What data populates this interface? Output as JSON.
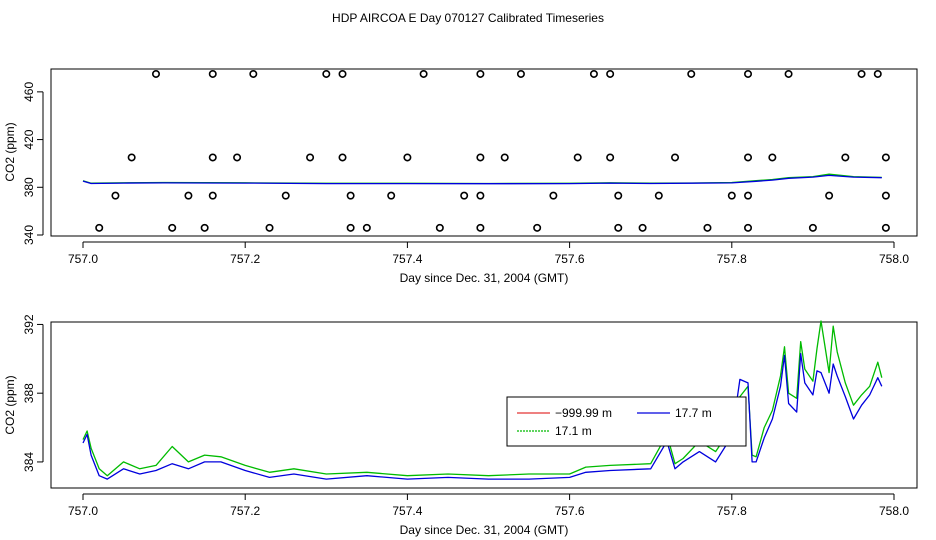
{
  "title": "HDP AIRCOA E  Day 070127  Calibrated Timeseries",
  "colors": {
    "red": "#dd0000",
    "green": "#00bb00",
    "blue": "#0000dd"
  },
  "chart_data": [
    {
      "type": "scatter",
      "xlabel": "Day since Dec. 31, 2004 (GMT)",
      "ylabel": "CO2 (ppm)",
      "xlim": [
        757.0,
        758.0
      ],
      "ylim": [
        340,
        480
      ],
      "xticks": [
        "757.0",
        "757.2",
        "757.4",
        "757.6",
        "757.8",
        "758.0"
      ],
      "yticks": [
        "340",
        "380",
        "420",
        "460"
      ],
      "series": [
        {
          "color": "green",
          "kind": "line",
          "x": [
            757.0,
            757.01,
            757.05,
            757.1,
            757.2,
            757.3,
            757.4,
            757.5,
            757.6,
            757.65,
            757.7,
            757.75,
            757.8,
            757.83,
            757.85,
            757.87,
            757.9,
            757.92,
            757.95,
            757.985
          ],
          "y": [
            385.5,
            383.4,
            383.8,
            384.0,
            383.8,
            383.3,
            383.3,
            383.2,
            383.3,
            383.8,
            383.4,
            383.6,
            384.0,
            385.5,
            386.5,
            388.0,
            389.0,
            391.0,
            389.0,
            388.3
          ]
        },
        {
          "color": "blue",
          "kind": "line",
          "x": [
            757.0,
            757.01,
            757.05,
            757.1,
            757.2,
            757.3,
            757.4,
            757.5,
            757.6,
            757.65,
            757.7,
            757.75,
            757.8,
            757.83,
            757.85,
            757.87,
            757.9,
            757.92,
            757.95,
            757.985
          ],
          "y": [
            385.2,
            383.2,
            383.5,
            383.7,
            383.5,
            383.1,
            383.1,
            383.0,
            383.1,
            383.5,
            383.2,
            383.4,
            383.7,
            385.0,
            386.0,
            387.5,
            388.5,
            390.0,
            388.5,
            388.0
          ]
        },
        {
          "color": "black",
          "kind": "points",
          "x": [
            757.09,
            757.16,
            757.21,
            757.3,
            757.32,
            757.42,
            757.49,
            757.54,
            757.63,
            757.65,
            757.75,
            757.82,
            757.87,
            757.96,
            757.98,
            757.06,
            757.16,
            757.19,
            757.28,
            757.32,
            757.4,
            757.49,
            757.52,
            757.61,
            757.65,
            757.73,
            757.82,
            757.85,
            757.94,
            757.99,
            757.04,
            757.13,
            757.16,
            757.25,
            757.33,
            757.38,
            757.47,
            757.49,
            757.58,
            757.66,
            757.71,
            757.8,
            757.82,
            757.92,
            757.99,
            757.02,
            757.11,
            757.15,
            757.23,
            757.33,
            757.35,
            757.44,
            757.49,
            757.56,
            757.66,
            757.69,
            757.77,
            757.82,
            757.9,
            757.99
          ],
          "y": [
            475,
            475,
            475,
            475,
            475,
            475,
            475,
            475,
            475,
            475,
            475,
            475,
            475,
            475,
            475,
            405,
            405,
            405,
            405,
            405,
            405,
            405,
            405,
            405,
            405,
            405,
            405,
            405,
            405,
            405,
            373,
            373,
            373,
            373,
            373,
            373,
            373,
            373,
            373,
            373,
            373,
            373,
            373,
            373,
            373,
            346,
            346,
            346,
            346,
            346,
            346,
            346,
            346,
            346,
            346,
            346,
            346,
            346,
            346,
            346
          ]
        }
      ]
    },
    {
      "type": "line",
      "xlabel": "Day since Dec. 31, 2004 (GMT)",
      "ylabel": "CO2 (ppm)",
      "xlim": [
        757.0,
        758.0
      ],
      "ylim": [
        382.6,
        392.2
      ],
      "xticks": [
        "757.0",
        "757.2",
        "757.4",
        "757.6",
        "757.8",
        "758.0"
      ],
      "yticks": [
        "384",
        "388",
        "392"
      ],
      "legend": {
        "position": "right",
        "entries": [
          {
            "label": "−999.99 m",
            "color": "red"
          },
          {
            "label": "17.7 m",
            "color": "blue"
          },
          {
            "label": "17.1 m",
            "color": "green"
          }
        ]
      },
      "series": [
        {
          "name": "17.1 m",
          "color": "green",
          "x": [
            757.0,
            757.005,
            757.01,
            757.02,
            757.03,
            757.05,
            757.07,
            757.09,
            757.11,
            757.13,
            757.15,
            757.17,
            757.2,
            757.23,
            757.26,
            757.3,
            757.35,
            757.4,
            757.45,
            757.5,
            757.55,
            757.6,
            757.62,
            757.65,
            757.7,
            757.72,
            757.73,
            757.74,
            757.76,
            757.78,
            757.8,
            757.81,
            757.82,
            757.825,
            757.83,
            757.84,
            757.85,
            757.86,
            757.865,
            757.87,
            757.88,
            757.885,
            757.89,
            757.9,
            757.905,
            757.91,
            757.92,
            757.925,
            757.93,
            757.94,
            757.95,
            757.96,
            757.97,
            757.98,
            757.985
          ],
          "y": [
            385.3,
            385.8,
            384.8,
            383.6,
            383.2,
            384.0,
            383.6,
            383.8,
            384.9,
            384.0,
            384.4,
            384.3,
            383.8,
            383.4,
            383.6,
            383.3,
            383.4,
            383.2,
            383.3,
            383.2,
            383.3,
            383.3,
            383.7,
            383.8,
            383.9,
            385.6,
            383.9,
            384.2,
            385.2,
            384.6,
            386.0,
            387.8,
            388.4,
            384.4,
            384.3,
            386.0,
            387.0,
            389.0,
            390.7,
            388.0,
            387.7,
            391.0,
            389.4,
            388.7,
            390.6,
            392.2,
            389.2,
            391.9,
            390.4,
            388.6,
            387.3,
            387.9,
            388.4,
            389.8,
            388.9
          ]
        },
        {
          "name": "17.7 m",
          "color": "blue",
          "x": [
            757.0,
            757.005,
            757.01,
            757.02,
            757.03,
            757.05,
            757.07,
            757.09,
            757.11,
            757.13,
            757.15,
            757.17,
            757.2,
            757.23,
            757.26,
            757.3,
            757.35,
            757.4,
            757.45,
            757.5,
            757.55,
            757.6,
            757.62,
            757.65,
            757.7,
            757.72,
            757.73,
            757.74,
            757.76,
            757.78,
            757.8,
            757.81,
            757.82,
            757.825,
            757.83,
            757.84,
            757.85,
            757.86,
            757.865,
            757.87,
            757.88,
            757.885,
            757.89,
            757.9,
            757.905,
            757.91,
            757.92,
            757.925,
            757.93,
            757.94,
            757.95,
            757.96,
            757.97,
            757.98,
            757.985
          ],
          "y": [
            385.1,
            385.6,
            384.4,
            383.2,
            383.0,
            383.6,
            383.3,
            383.5,
            383.9,
            383.6,
            384.0,
            384.0,
            383.5,
            383.1,
            383.3,
            383.0,
            383.2,
            383.0,
            383.1,
            383.0,
            383.0,
            383.1,
            383.4,
            383.5,
            383.6,
            385.2,
            383.6,
            384.0,
            384.6,
            384.0,
            385.5,
            388.8,
            388.6,
            384.0,
            384.0,
            385.4,
            386.5,
            388.4,
            390.2,
            387.4,
            386.9,
            390.3,
            388.6,
            387.9,
            389.3,
            389.2,
            388.0,
            389.7,
            389.0,
            387.8,
            386.5,
            387.3,
            387.9,
            388.9,
            388.4
          ]
        }
      ]
    }
  ]
}
